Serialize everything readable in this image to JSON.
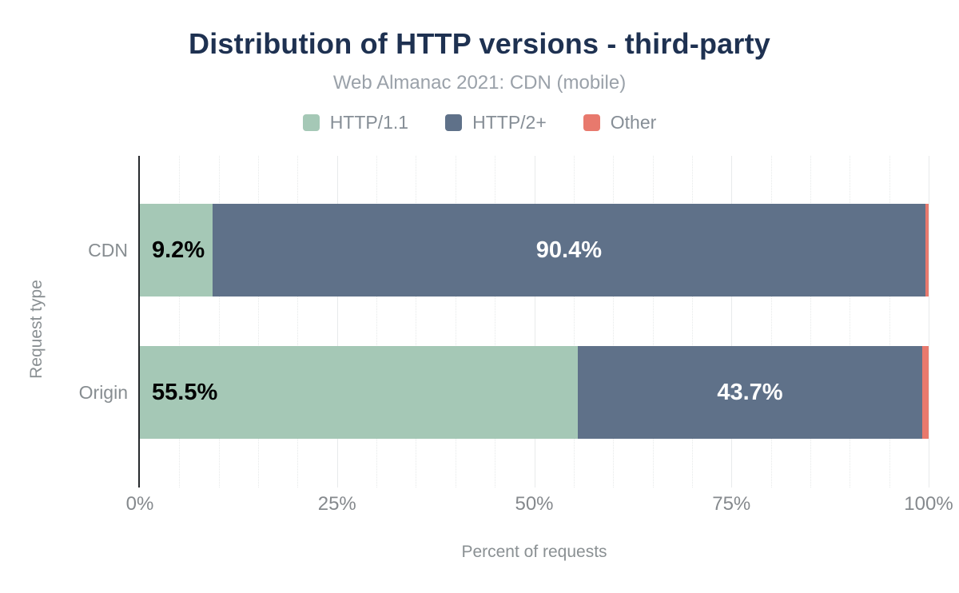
{
  "chart_data": {
    "type": "bar",
    "orientation": "horizontal",
    "stacked": true,
    "title": "Distribution of HTTP versions - third-party",
    "subtitle": "Web Almanac 2021: CDN (mobile)",
    "xlabel": "Percent of requests",
    "ylabel": "Request type",
    "categories": [
      "CDN",
      "Origin"
    ],
    "series": [
      {
        "name": "HTTP/1.1",
        "color": "#a5c8b6",
        "values": [
          9.2,
          55.5
        ],
        "labels": [
          "9.2%",
          "55.5%"
        ],
        "label_color": "#000000",
        "label_position": "start"
      },
      {
        "name": "HTTP/2+",
        "color": "#5f7189",
        "values": [
          90.4,
          43.7
        ],
        "labels": [
          "90.4%",
          "43.7%"
        ],
        "label_color": "#ffffff",
        "label_position": "center"
      },
      {
        "name": "Other",
        "color": "#e8796d",
        "values": [
          0.4,
          0.8
        ],
        "labels": [
          null,
          null
        ],
        "label_color": null,
        "label_position": "none"
      }
    ],
    "x_axis": {
      "range": [
        0,
        100
      ],
      "ticks": [
        {
          "label": "0%",
          "value": 0
        },
        {
          "label": "25%",
          "value": 25
        },
        {
          "label": "50%",
          "value": 50
        },
        {
          "label": "75%",
          "value": 75
        },
        {
          "label": "100%",
          "value": 100
        }
      ],
      "minor_step": 5,
      "major_step": 25
    },
    "legend_position": "top",
    "grid": true,
    "style_colors": {
      "title_text": "#1e3151",
      "subtitle_text": "#9aa1a9",
      "axis_text": "#878d91",
      "axis_line": "#26292d",
      "major_gridline": "#e8eaeb",
      "minor_gridline": "#e6e9e9",
      "background": "#ffffff"
    }
  }
}
